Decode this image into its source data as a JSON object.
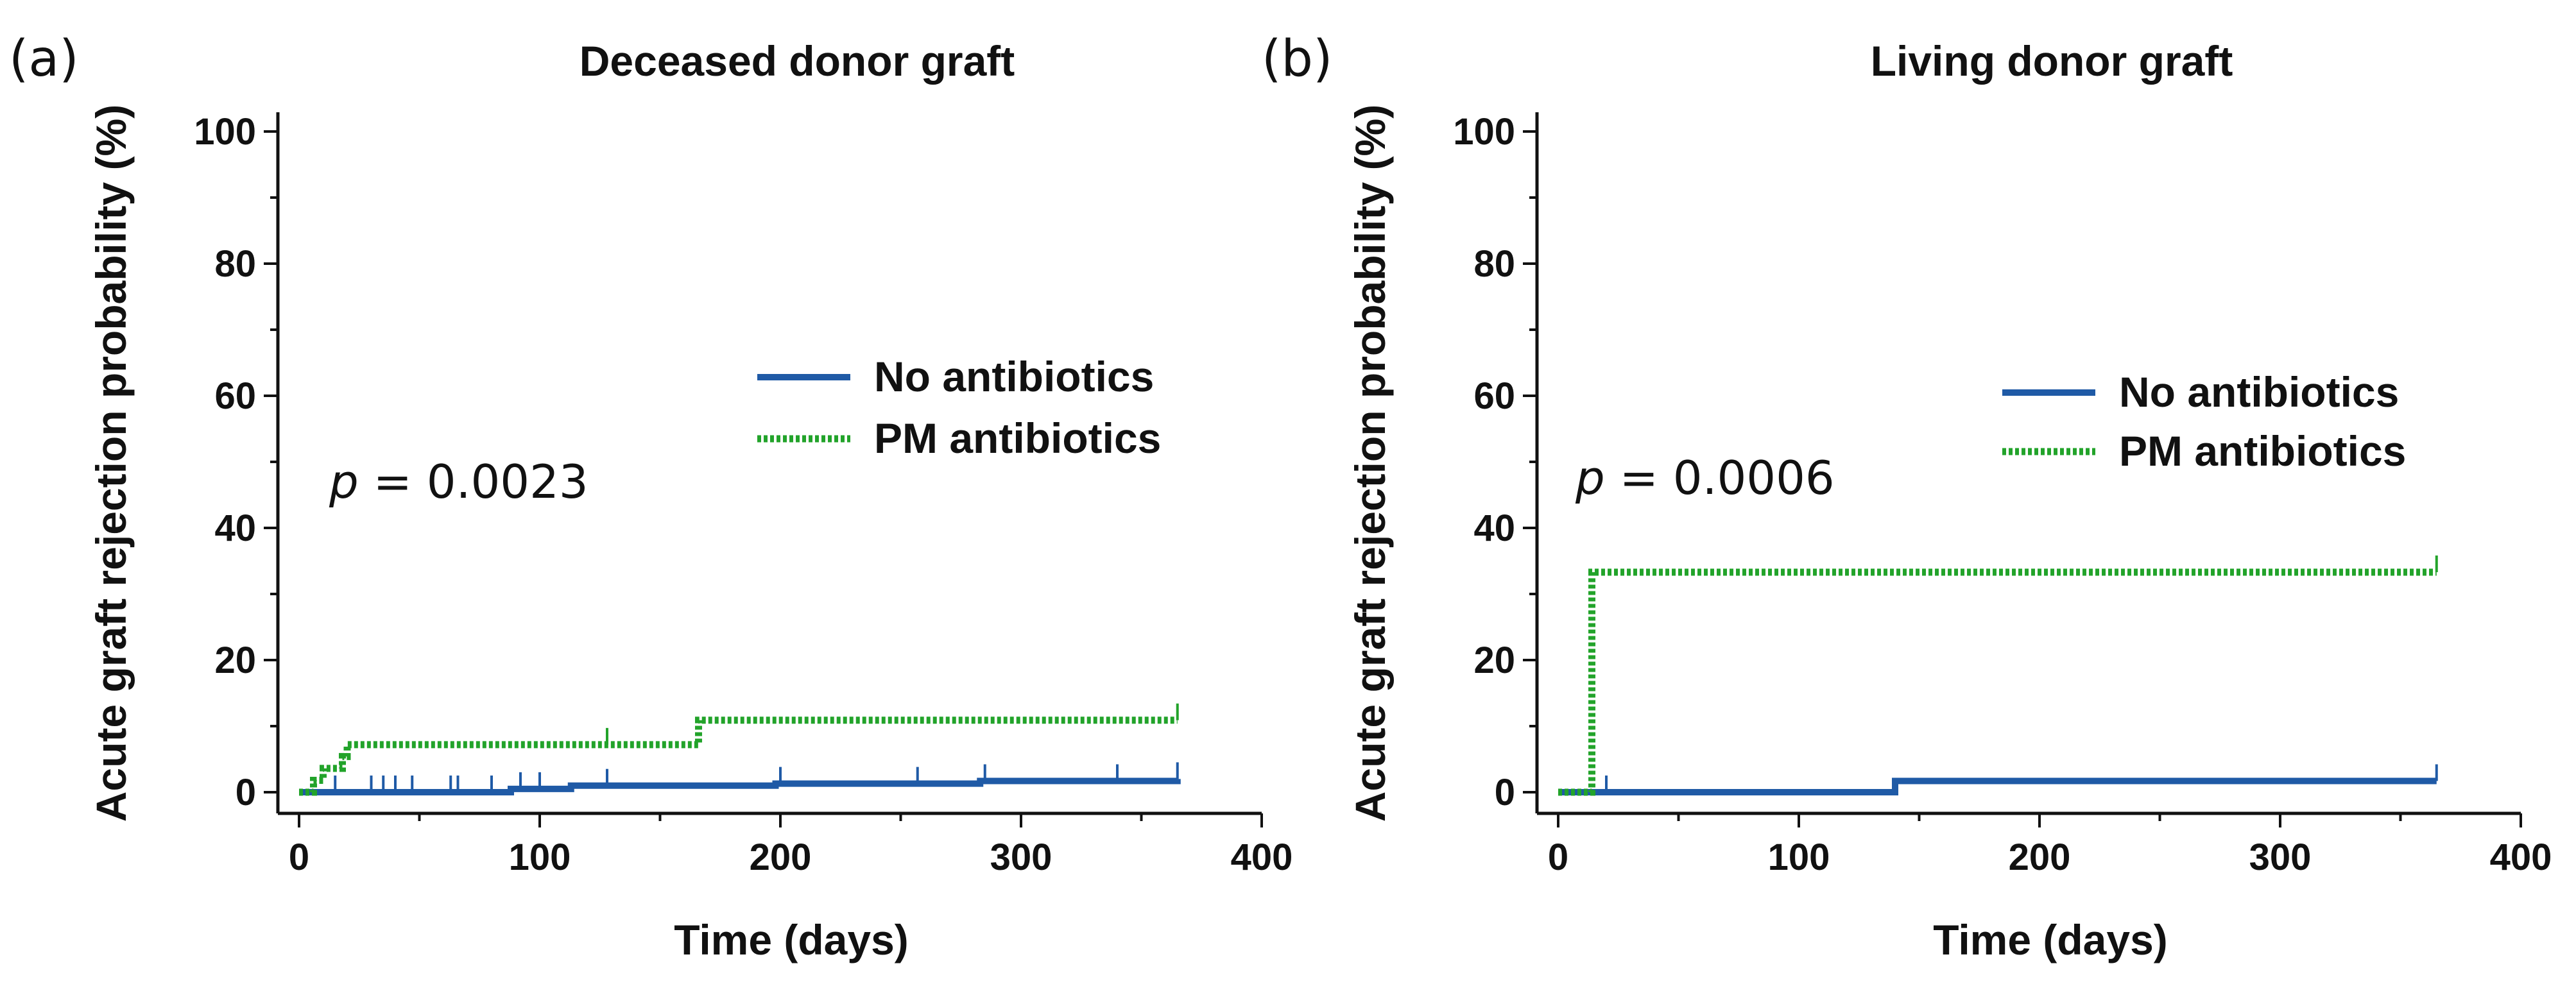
{
  "chart_data": [
    {
      "type": "line",
      "panel_label": "(a)",
      "title": "Deceased donor graft",
      "xlabel": "Time (days)",
      "ylabel": "Acute graft rejection probability (%)",
      "xlim": [
        0,
        400
      ],
      "ylim": [
        0,
        100
      ],
      "xticks": [
        0,
        100,
        200,
        300,
        400
      ],
      "yticks": [
        0,
        20,
        40,
        60,
        80,
        100
      ],
      "grid": false,
      "legend_position": "right-middle",
      "annotation": {
        "prefix": "p",
        "text": " = 0.0023"
      },
      "series": [
        {
          "name": "No antibiotics",
          "color": "#1f5aa6",
          "style": "solid",
          "x": [
            0,
            88,
            113,
            198,
            283,
            365
          ],
          "y": [
            0,
            0.5,
            1.0,
            1.3,
            1.7,
            2.0
          ],
          "censor_x": [
            15,
            30,
            35,
            40,
            47,
            63,
            66,
            80,
            92,
            100,
            128,
            200,
            257,
            285,
            340,
            365
          ]
        },
        {
          "name": "PM antibiotics",
          "color": "#22a32a",
          "style": "dotted",
          "x": [
            0,
            6,
            10,
            18,
            20,
            164,
            166,
            365
          ],
          "y": [
            0,
            1.8,
            3.6,
            5.4,
            7.2,
            7.2,
            10.9,
            10.9
          ],
          "censor_x": [
            128,
            365
          ]
        }
      ]
    },
    {
      "type": "line",
      "panel_label": "(b)",
      "title": "Living donor graft",
      "xlabel": "Time (days)",
      "ylabel": "Acute graft rejection probability (%)",
      "xlim": [
        0,
        400
      ],
      "ylim": [
        0,
        100
      ],
      "xticks": [
        0,
        100,
        200,
        300,
        400
      ],
      "yticks": [
        0,
        20,
        40,
        60,
        80,
        100
      ],
      "grid": false,
      "legend_position": "right-middle",
      "annotation": {
        "prefix": "p",
        "text": " = 0.0006"
      },
      "series": [
        {
          "name": "No antibiotics",
          "color": "#1f5aa6",
          "style": "solid",
          "x": [
            0,
            140,
            365
          ],
          "y": [
            0,
            1.7,
            1.7
          ],
          "censor_x": [
            20,
            365
          ]
        },
        {
          "name": "PM antibiotics",
          "color": "#22a32a",
          "style": "dotted",
          "x": [
            0,
            14,
            365
          ],
          "y": [
            0,
            33.3,
            33.3
          ],
          "censor_x": [
            365
          ]
        }
      ]
    }
  ]
}
